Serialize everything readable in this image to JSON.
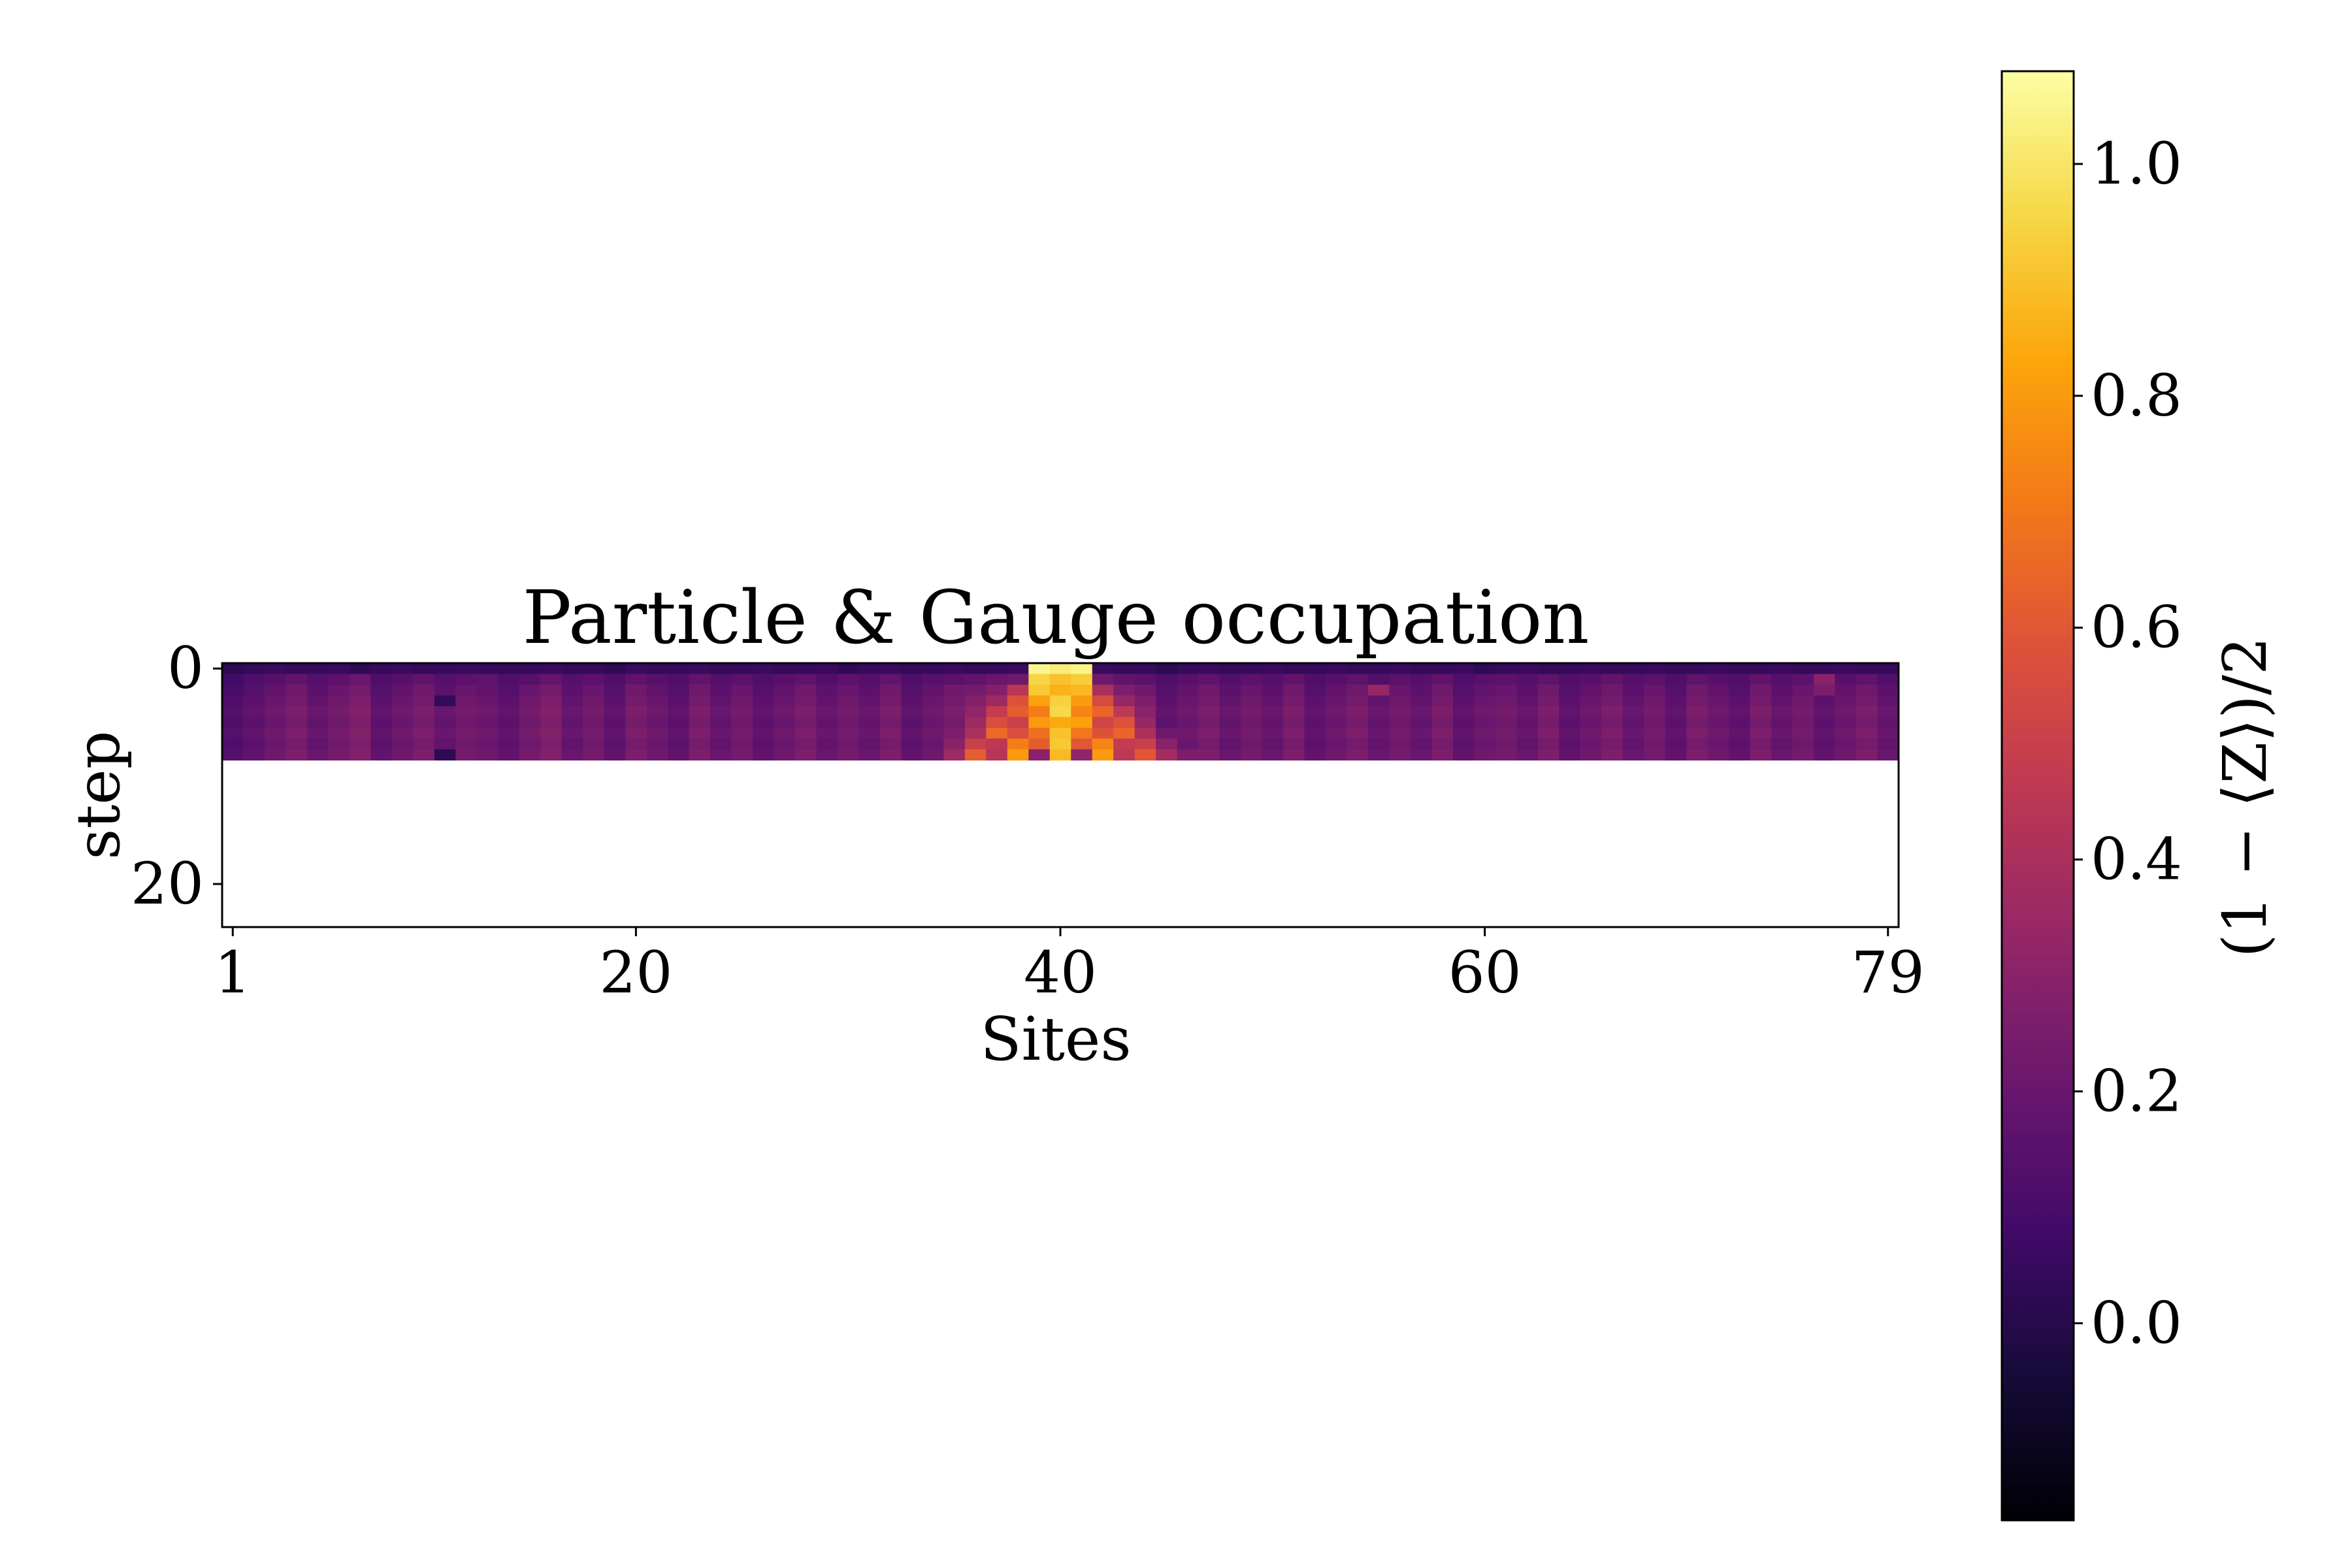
{
  "chart_data": {
    "type": "heatmap",
    "title": "Particle & Gauge occupation",
    "xlabel": "Sites",
    "ylabel": "step",
    "x_ticks": [
      1,
      20,
      40,
      60,
      79
    ],
    "y_ticks": [
      0,
      20
    ],
    "x_range": [
      1,
      79
    ],
    "y_range": [
      0,
      24
    ],
    "colormap": "inferno",
    "colorbar": {
      "label": "(1 − ⟨Z⟩)/2",
      "range": [
        -0.17,
        1.08
      ],
      "ticks": [
        0.0,
        0.2,
        0.4,
        0.6,
        0.8,
        1.0
      ]
    },
    "rows": 9,
    "cols": 79,
    "values": [
      [
        0.02,
        0.04,
        0.06,
        0.04,
        0.05,
        0.06,
        0.03,
        0.05,
        0.06,
        0.04,
        0.05,
        0.06,
        0.05,
        0.04,
        0.05,
        0.06,
        0.04,
        0.05,
        0.03,
        0.06,
        0.04,
        0.05,
        0.06,
        0.04,
        0.05,
        0.06,
        0.04,
        0.05,
        0.06,
        0.03,
        0.05,
        0.06,
        0.04,
        0.05,
        0.06,
        0.04,
        0.05,
        0.06,
        1.05,
        1.02,
        1.04,
        0.06,
        0.04,
        0.05,
        0.02,
        0.05,
        0.06,
        0.04,
        0.05,
        0.06,
        0.04,
        0.05,
        0.06,
        0.04,
        0.05,
        0.06,
        0.04,
        0.05,
        0.06,
        0.03,
        0.05,
        0.06,
        0.04,
        0.05,
        0.06,
        0.04,
        0.05,
        0.06,
        0.04,
        0.05,
        0.06,
        0.04,
        0.05,
        0.06,
        0.04,
        0.05,
        0.06,
        0.04,
        0.05
      ],
      [
        0.08,
        0.12,
        0.15,
        0.18,
        0.14,
        0.16,
        0.2,
        0.12,
        0.15,
        0.18,
        0.14,
        0.16,
        0.17,
        0.13,
        0.15,
        0.19,
        0.14,
        0.16,
        0.12,
        0.17,
        0.15,
        0.13,
        0.18,
        0.14,
        0.16,
        0.12,
        0.15,
        0.17,
        0.13,
        0.16,
        0.14,
        0.18,
        0.12,
        0.15,
        0.16,
        0.18,
        0.2,
        0.22,
        0.95,
        0.9,
        0.93,
        0.22,
        0.18,
        0.16,
        0.12,
        0.15,
        0.17,
        0.13,
        0.16,
        0.14,
        0.18,
        0.12,
        0.15,
        0.17,
        0.13,
        0.16,
        0.14,
        0.18,
        0.12,
        0.15,
        0.16,
        0.14,
        0.17,
        0.13,
        0.15,
        0.18,
        0.14,
        0.16,
        0.12,
        0.17,
        0.15,
        0.13,
        0.18,
        0.14,
        0.16,
        0.3,
        0.15,
        0.17,
        0.13
      ],
      [
        0.1,
        0.14,
        0.18,
        0.22,
        0.16,
        0.2,
        0.24,
        0.14,
        0.18,
        0.22,
        0.16,
        0.2,
        0.18,
        0.14,
        0.2,
        0.24,
        0.16,
        0.2,
        0.14,
        0.22,
        0.18,
        0.14,
        0.22,
        0.16,
        0.2,
        0.14,
        0.18,
        0.22,
        0.16,
        0.2,
        0.16,
        0.22,
        0.14,
        0.18,
        0.22,
        0.24,
        0.28,
        0.45,
        0.92,
        0.86,
        0.88,
        0.4,
        0.26,
        0.22,
        0.14,
        0.18,
        0.22,
        0.16,
        0.2,
        0.16,
        0.22,
        0.14,
        0.18,
        0.22,
        0.34,
        0.2,
        0.16,
        0.22,
        0.14,
        0.18,
        0.2,
        0.16,
        0.22,
        0.14,
        0.18,
        0.22,
        0.16,
        0.2,
        0.14,
        0.22,
        0.18,
        0.14,
        0.22,
        0.16,
        0.2,
        0.26,
        0.18,
        0.22,
        0.16
      ],
      [
        0.12,
        0.16,
        0.2,
        0.24,
        0.18,
        0.22,
        0.26,
        0.16,
        0.2,
        0.24,
        0.04,
        0.22,
        0.2,
        0.16,
        0.22,
        0.26,
        0.18,
        0.22,
        0.16,
        0.24,
        0.2,
        0.16,
        0.24,
        0.18,
        0.22,
        0.16,
        0.2,
        0.24,
        0.18,
        0.22,
        0.18,
        0.24,
        0.16,
        0.2,
        0.24,
        0.28,
        0.36,
        0.58,
        0.82,
        0.94,
        0.8,
        0.55,
        0.34,
        0.26,
        0.16,
        0.2,
        0.24,
        0.18,
        0.22,
        0.18,
        0.24,
        0.16,
        0.2,
        0.24,
        0.18,
        0.22,
        0.18,
        0.24,
        0.16,
        0.2,
        0.22,
        0.18,
        0.24,
        0.16,
        0.2,
        0.24,
        0.18,
        0.22,
        0.16,
        0.24,
        0.2,
        0.16,
        0.24,
        0.18,
        0.22,
        0.16,
        0.2,
        0.24,
        0.18
      ],
      [
        0.14,
        0.18,
        0.22,
        0.26,
        0.2,
        0.24,
        0.28,
        0.18,
        0.22,
        0.26,
        0.2,
        0.24,
        0.22,
        0.18,
        0.24,
        0.28,
        0.2,
        0.24,
        0.18,
        0.26,
        0.22,
        0.18,
        0.26,
        0.2,
        0.24,
        0.18,
        0.22,
        0.26,
        0.2,
        0.24,
        0.2,
        0.26,
        0.18,
        0.22,
        0.26,
        0.32,
        0.48,
        0.62,
        0.72,
        0.96,
        0.74,
        0.64,
        0.46,
        0.3,
        0.18,
        0.22,
        0.26,
        0.2,
        0.24,
        0.2,
        0.26,
        0.18,
        0.22,
        0.26,
        0.2,
        0.24,
        0.2,
        0.26,
        0.18,
        0.22,
        0.24,
        0.2,
        0.26,
        0.18,
        0.22,
        0.26,
        0.2,
        0.24,
        0.18,
        0.26,
        0.22,
        0.18,
        0.26,
        0.2,
        0.24,
        0.18,
        0.22,
        0.26,
        0.2
      ],
      [
        0.12,
        0.16,
        0.2,
        0.24,
        0.18,
        0.22,
        0.26,
        0.16,
        0.2,
        0.24,
        0.18,
        0.22,
        0.2,
        0.16,
        0.22,
        0.26,
        0.18,
        0.22,
        0.16,
        0.24,
        0.2,
        0.16,
        0.24,
        0.18,
        0.22,
        0.16,
        0.2,
        0.24,
        0.18,
        0.22,
        0.18,
        0.24,
        0.16,
        0.2,
        0.24,
        0.36,
        0.56,
        0.5,
        0.8,
        0.84,
        0.82,
        0.52,
        0.58,
        0.34,
        0.16,
        0.2,
        0.24,
        0.18,
        0.22,
        0.18,
        0.24,
        0.16,
        0.2,
        0.24,
        0.18,
        0.22,
        0.18,
        0.24,
        0.16,
        0.2,
        0.22,
        0.18,
        0.24,
        0.16,
        0.2,
        0.24,
        0.18,
        0.22,
        0.16,
        0.24,
        0.2,
        0.16,
        0.24,
        0.18,
        0.22,
        0.16,
        0.2,
        0.24,
        0.18
      ],
      [
        0.14,
        0.18,
        0.22,
        0.26,
        0.2,
        0.24,
        0.28,
        0.18,
        0.22,
        0.26,
        0.2,
        0.24,
        0.22,
        0.18,
        0.24,
        0.28,
        0.2,
        0.24,
        0.18,
        0.26,
        0.22,
        0.18,
        0.26,
        0.2,
        0.24,
        0.18,
        0.22,
        0.26,
        0.2,
        0.24,
        0.2,
        0.26,
        0.18,
        0.22,
        0.26,
        0.4,
        0.66,
        0.56,
        0.68,
        0.9,
        0.7,
        0.58,
        0.64,
        0.4,
        0.22,
        0.22,
        0.26,
        0.2,
        0.24,
        0.2,
        0.26,
        0.18,
        0.22,
        0.26,
        0.2,
        0.24,
        0.2,
        0.26,
        0.18,
        0.22,
        0.24,
        0.2,
        0.26,
        0.18,
        0.22,
        0.26,
        0.2,
        0.24,
        0.18,
        0.26,
        0.22,
        0.18,
        0.26,
        0.2,
        0.24,
        0.18,
        0.22,
        0.26,
        0.2
      ],
      [
        0.12,
        0.16,
        0.2,
        0.24,
        0.18,
        0.22,
        0.26,
        0.16,
        0.2,
        0.24,
        0.18,
        0.22,
        0.2,
        0.16,
        0.22,
        0.26,
        0.18,
        0.22,
        0.16,
        0.24,
        0.2,
        0.16,
        0.24,
        0.18,
        0.22,
        0.16,
        0.2,
        0.24,
        0.18,
        0.22,
        0.18,
        0.24,
        0.16,
        0.2,
        0.3,
        0.5,
        0.46,
        0.72,
        0.62,
        0.92,
        0.6,
        0.74,
        0.48,
        0.5,
        0.3,
        0.2,
        0.24,
        0.18,
        0.22,
        0.18,
        0.24,
        0.16,
        0.2,
        0.24,
        0.18,
        0.22,
        0.18,
        0.24,
        0.16,
        0.2,
        0.22,
        0.18,
        0.24,
        0.16,
        0.2,
        0.24,
        0.18,
        0.22,
        0.16,
        0.24,
        0.2,
        0.16,
        0.24,
        0.18,
        0.22,
        0.16,
        0.2,
        0.24,
        0.18
      ],
      [
        0.14,
        0.18,
        0.22,
        0.26,
        0.2,
        0.24,
        0.28,
        0.18,
        0.22,
        0.26,
        0.02,
        0.24,
        0.22,
        0.18,
        0.24,
        0.28,
        0.2,
        0.24,
        0.18,
        0.26,
        0.22,
        0.18,
        0.26,
        0.2,
        0.24,
        0.18,
        0.22,
        0.26,
        0.2,
        0.24,
        0.2,
        0.26,
        0.18,
        0.22,
        0.36,
        0.62,
        0.44,
        0.8,
        0.3,
        0.88,
        0.32,
        0.8,
        0.46,
        0.6,
        0.38,
        0.26,
        0.26,
        0.2,
        0.24,
        0.2,
        0.26,
        0.18,
        0.22,
        0.26,
        0.2,
        0.24,
        0.2,
        0.26,
        0.18,
        0.22,
        0.24,
        0.2,
        0.26,
        0.18,
        0.22,
        0.26,
        0.2,
        0.24,
        0.18,
        0.26,
        0.22,
        0.18,
        0.26,
        0.2,
        0.24,
        0.18,
        0.22,
        0.26,
        0.2
      ]
    ]
  }
}
